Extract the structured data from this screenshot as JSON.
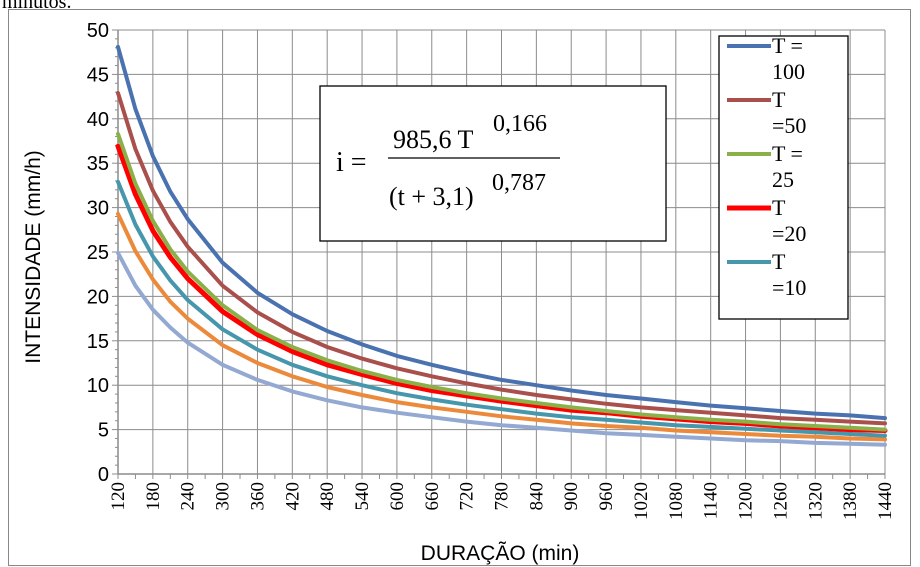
{
  "caption_fragment": "minutos.",
  "formula": {
    "lhs": "i =",
    "numerator_base": "985,6 T",
    "numerator_exp": "0,166",
    "denominator_base": "(t + 3,1)",
    "denominator_exp": "0,787"
  },
  "legend": [
    {
      "lines": [
        "T =",
        "100"
      ]
    },
    {
      "lines": [
        "T",
        "=50"
      ]
    },
    {
      "lines": [
        "T =",
        "25"
      ]
    },
    {
      "lines": [
        "T",
        "=20"
      ]
    },
    {
      "lines": [
        "T",
        "=10"
      ]
    }
  ],
  "chart_data": {
    "type": "line",
    "xlabel": "DURAÇÃO (min)",
    "ylabel": "INTENSIDADE (mm/h)",
    "xlim": [
      120,
      1440
    ],
    "ylim": [
      0,
      50
    ],
    "xticks": [
      120,
      180,
      240,
      300,
      360,
      420,
      480,
      540,
      600,
      660,
      720,
      780,
      840,
      900,
      960,
      1020,
      1080,
      1140,
      1200,
      1260,
      1320,
      1380,
      1440
    ],
    "xtick_labels": [
      "120",
      "180",
      "240",
      "300",
      "360",
      "420",
      "480",
      "540",
      "600",
      "660",
      "720",
      "780",
      "840",
      "900",
      "960",
      "1020",
      "1080",
      "1140",
      "1200",
      "1260",
      "1320",
      "1380",
      "1440"
    ],
    "yticks": [
      0,
      5,
      10,
      15,
      20,
      25,
      30,
      35,
      40,
      45,
      50
    ],
    "ytick_labels": [
      "0",
      "5",
      "10",
      "15",
      "20",
      "25",
      "30",
      "35",
      "40",
      "45",
      "50"
    ],
    "grid": true,
    "legend_position": "top-right",
    "x": [
      120,
      150,
      180,
      210,
      240,
      300,
      360,
      420,
      480,
      540,
      600,
      660,
      720,
      780,
      840,
      900,
      960,
      1020,
      1080,
      1140,
      1200,
      1260,
      1320,
      1380,
      1440
    ],
    "series": [
      {
        "name": "T = 100",
        "color": "#4a72b0",
        "values": [
          48.1,
          41.1,
          35.8,
          31.8,
          28.7,
          23.8,
          20.4,
          18.0,
          16.1,
          14.6,
          13.3,
          12.3,
          11.4,
          10.6,
          10.0,
          9.4,
          8.9,
          8.5,
          8.1,
          7.7,
          7.4,
          7.1,
          6.8,
          6.6,
          6.3
        ]
      },
      {
        "name": "T =50",
        "color": "#a9504c",
        "values": [
          42.9,
          36.6,
          31.9,
          28.4,
          25.6,
          21.2,
          18.2,
          16.0,
          14.3,
          13.0,
          11.9,
          11.0,
          10.2,
          9.5,
          8.9,
          8.4,
          7.9,
          7.5,
          7.2,
          6.9,
          6.6,
          6.3,
          6.1,
          5.9,
          5.7
        ]
      },
      {
        "name": "T = 25",
        "color": "#8ab04a",
        "values": [
          38.3,
          32.7,
          28.5,
          25.3,
          22.8,
          19.0,
          16.2,
          14.3,
          12.8,
          11.6,
          10.6,
          9.8,
          9.1,
          8.5,
          8.0,
          7.5,
          7.1,
          6.7,
          6.4,
          6.1,
          5.9,
          5.6,
          5.4,
          5.2,
          5.0
        ]
      },
      {
        "name": "T =20",
        "color": "#ff0000",
        "values": [
          36.9,
          31.5,
          27.4,
          24.4,
          22.0,
          18.3,
          15.7,
          13.8,
          12.3,
          11.2,
          10.2,
          9.4,
          8.8,
          8.2,
          7.7,
          7.2,
          6.9,
          6.5,
          6.2,
          5.9,
          5.7,
          5.4,
          5.2,
          5.0,
          4.9
        ]
      },
      {
        "name": "T =10",
        "color": "#4696ac",
        "values": [
          32.9,
          28.1,
          24.5,
          21.8,
          19.6,
          16.3,
          14.0,
          12.3,
          11.0,
          10.0,
          9.1,
          8.4,
          7.8,
          7.3,
          6.8,
          6.4,
          6.1,
          5.8,
          5.5,
          5.3,
          5.1,
          4.9,
          4.7,
          4.5,
          4.3
        ]
      },
      {
        "color": "#ec8a3c",
        "values": [
          29.3,
          25.1,
          21.9,
          19.4,
          17.5,
          14.5,
          12.5,
          11.0,
          9.8,
          8.9,
          8.1,
          7.5,
          7.0,
          6.5,
          6.1,
          5.7,
          5.4,
          5.2,
          4.9,
          4.7,
          4.5,
          4.3,
          4.2,
          4.0,
          3.9
        ]
      },
      {
        "color": "#93a9d2",
        "values": [
          24.9,
          21.2,
          18.5,
          16.5,
          14.8,
          12.3,
          10.6,
          9.3,
          8.3,
          7.5,
          6.9,
          6.4,
          5.9,
          5.5,
          5.2,
          4.9,
          4.6,
          4.4,
          4.2,
          4.0,
          3.8,
          3.7,
          3.5,
          3.4,
          3.3
        ]
      }
    ]
  }
}
